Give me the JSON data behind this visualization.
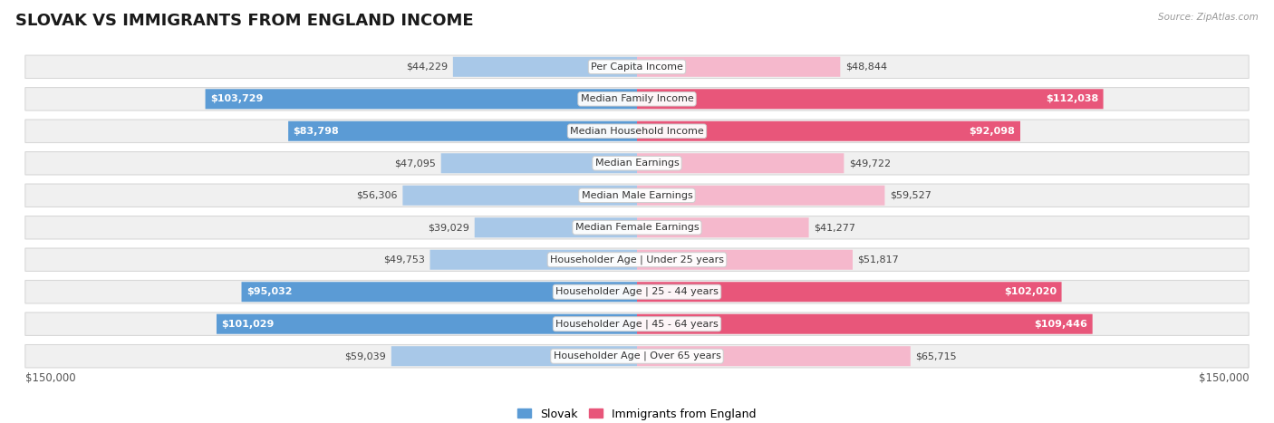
{
  "title": "SLOVAK VS IMMIGRANTS FROM ENGLAND INCOME",
  "source": "Source: ZipAtlas.com",
  "categories": [
    "Per Capita Income",
    "Median Family Income",
    "Median Household Income",
    "Median Earnings",
    "Median Male Earnings",
    "Median Female Earnings",
    "Householder Age | Under 25 years",
    "Householder Age | 25 - 44 years",
    "Householder Age | 45 - 64 years",
    "Householder Age | Over 65 years"
  ],
  "slovak_values": [
    44229,
    103729,
    83798,
    47095,
    56306,
    39029,
    49753,
    95032,
    101029,
    59039
  ],
  "england_values": [
    48844,
    112038,
    92098,
    49722,
    59527,
    41277,
    51817,
    102020,
    109446,
    65715
  ],
  "slovak_labels": [
    "$44,229",
    "$103,729",
    "$83,798",
    "$47,095",
    "$56,306",
    "$39,029",
    "$49,753",
    "$95,032",
    "$101,029",
    "$59,039"
  ],
  "england_labels": [
    "$48,844",
    "$112,038",
    "$92,098",
    "$49,722",
    "$59,527",
    "$41,277",
    "$51,817",
    "$102,020",
    "$109,446",
    "$65,715"
  ],
  "slovak_color_light": "#a8c8e8",
  "slovak_color_dark": "#5b9bd5",
  "england_color_light": "#f5b8cc",
  "england_color_dark": "#e8567a",
  "max_value": 150000,
  "legend_slovak": "Slovak",
  "legend_england": "Immigrants from England",
  "xlabel_left": "$150,000",
  "xlabel_right": "$150,000",
  "title_fontsize": 13,
  "label_fontsize": 8,
  "category_fontsize": 8,
  "slovak_large_threshold": 70000,
  "england_large_threshold": 70000
}
